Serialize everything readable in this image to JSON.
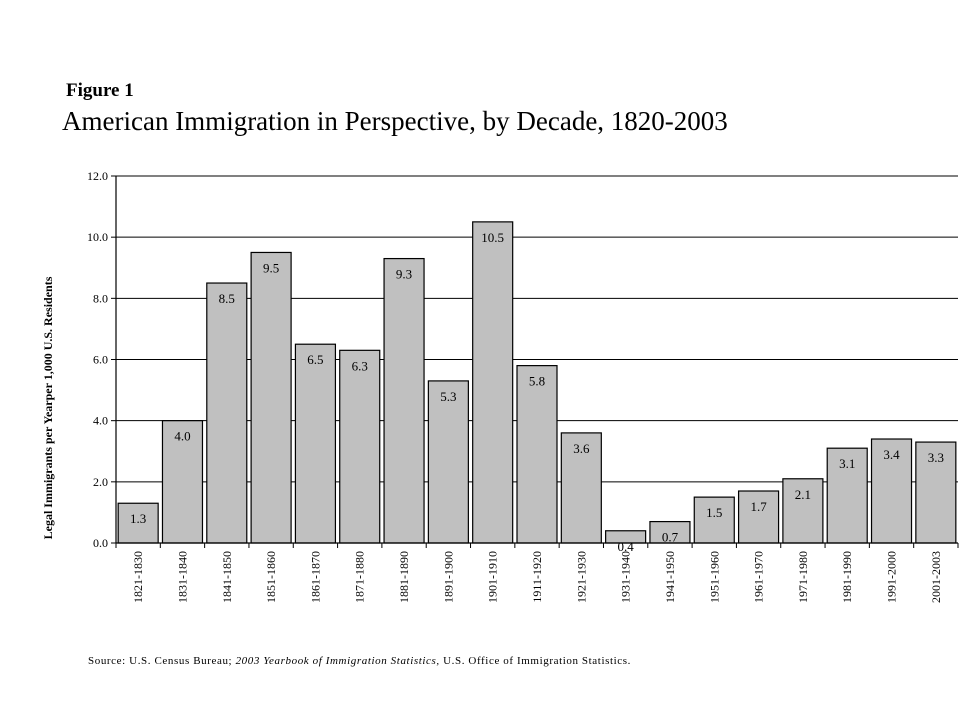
{
  "figure_label": "Figure 1",
  "chart_data": {
    "type": "bar",
    "title": "American Immigration in Perspective, by Decade, 1820-2003",
    "ylabel": "Legal Immigrants per Yearper 1,000 U.S. Residents",
    "xlabel": "",
    "ylim": [
      0,
      12
    ],
    "yticks": [
      "0.0",
      "2.0",
      "4.0",
      "6.0",
      "8.0",
      "10.0",
      "12.0"
    ],
    "grid": true,
    "categories": [
      "1821-1830",
      "1831-1840",
      "1841-1850",
      "1851-1860",
      "1861-1870",
      "1871-1880",
      "1881-1890",
      "1891-1900",
      "1901-1910",
      "1911-1920",
      "1921-1930",
      "1931-1940",
      "1941-1950",
      "1951-1960",
      "1961-1970",
      "1971-1980",
      "1981-1990",
      "1991-2000",
      "2001-2003"
    ],
    "values": [
      1.3,
      4.0,
      8.5,
      9.5,
      6.5,
      6.3,
      9.3,
      5.3,
      10.5,
      5.8,
      3.6,
      0.4,
      0.7,
      1.5,
      1.7,
      2.1,
      3.1,
      3.4,
      3.3
    ],
    "labels": [
      "1.3",
      "4.0",
      "8.5",
      "9.5",
      "6.5",
      "6.3",
      "9.3",
      "5.3",
      "10.5",
      "5.8",
      "3.6",
      "0.4",
      "0.7",
      "1.5",
      "1.7",
      "2.1",
      "3.1",
      "3.4",
      "3.3"
    ],
    "bar_color": "#c0c0c0"
  },
  "source": {
    "prefix": "Source: U.S. Census Bureau;",
    "italic": "2003 Yearbook of Immigration Statistics,",
    "suffix": "U.S. Office of Immigration Statistics."
  }
}
